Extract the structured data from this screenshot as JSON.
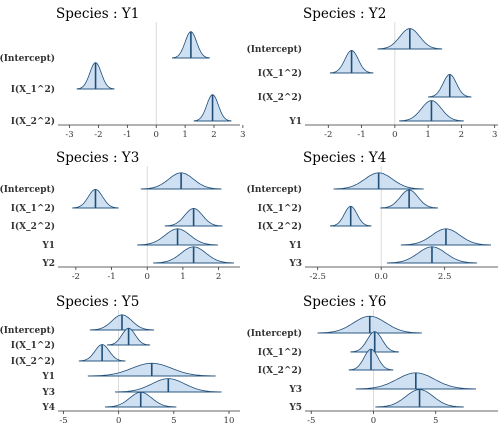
{
  "chart_data": [
    {
      "type": "ridgeline",
      "title": "Species : Y1",
      "xlim": [
        -3.4,
        2.9
      ],
      "xticks": [
        -3,
        -2,
        -1,
        0,
        1,
        2,
        3
      ],
      "categories": [
        "(Intercept)",
        "I(X_1^2)",
        "I(X_2^2)"
      ],
      "densities": [
        {
          "mean": 1.2,
          "sd": 0.2
        },
        {
          "mean": -2.1,
          "sd": 0.2
        },
        {
          "mean": 1.95,
          "sd": 0.2
        }
      ]
    },
    {
      "type": "ridgeline",
      "title": "Species : Y2",
      "xlim": [
        -2.7,
        3.1
      ],
      "xticks": [
        -2,
        -1,
        0,
        1,
        2,
        3
      ],
      "categories": [
        "(Intercept)",
        "I(X_1^2)",
        "I(X_2^2)",
        "Y1"
      ],
      "densities": [
        {
          "mean": 0.45,
          "sd": 0.3
        },
        {
          "mean": -1.3,
          "sd": 0.2
        },
        {
          "mean": 1.65,
          "sd": 0.2
        },
        {
          "mean": 1.1,
          "sd": 0.3
        }
      ]
    },
    {
      "type": "ridgeline",
      "title": "Species : Y3",
      "xlim": [
        -2.5,
        2.6
      ],
      "xticks": [
        -2,
        -1,
        0,
        1,
        2
      ],
      "categories": [
        "(Intercept)",
        "I(X_1^2)",
        "I(X_2^2)",
        "Y1",
        "Y2"
      ],
      "densities": [
        {
          "mean": 0.95,
          "sd": 0.35
        },
        {
          "mean": -1.45,
          "sd": 0.2
        },
        {
          "mean": 1.3,
          "sd": 0.25
        },
        {
          "mean": 0.85,
          "sd": 0.35
        },
        {
          "mean": 1.3,
          "sd": 0.35
        }
      ]
    },
    {
      "type": "ridgeline",
      "title": "Species : Y4",
      "xlim": [
        -3.0,
        4.6
      ],
      "xticks": [
        -2.5,
        0.0,
        2.5
      ],
      "ticklabels": [
        "-2.5",
        "0.0",
        "2.5"
      ],
      "categories": [
        "(Intercept)",
        "I(X_1^2)",
        "I(X_2^2)",
        "Y1",
        "Y3"
      ],
      "densities": [
        {
          "mean": -0.1,
          "sd": 0.55
        },
        {
          "mean": 1.1,
          "sd": 0.35
        },
        {
          "mean": -1.2,
          "sd": 0.25
        },
        {
          "mean": 2.55,
          "sd": 0.55
        },
        {
          "mean": 2.0,
          "sd": 0.55
        }
      ]
    },
    {
      "type": "ridgeline",
      "title": "Species : Y5",
      "xlim": [
        -5.5,
        11.0
      ],
      "xticks": [
        -5,
        0,
        5,
        10
      ],
      "categories": [
        "(Intercept)",
        "I(X_1^2)",
        "I(X_2^2)",
        "Y1",
        "Y3",
        "Y4"
      ],
      "densities": [
        {
          "mean": 0.3,
          "sd": 0.9
        },
        {
          "mean": 0.9,
          "sd": 0.6
        },
        {
          "mean": -1.5,
          "sd": 0.65
        },
        {
          "mean": 3.0,
          "sd": 1.8
        },
        {
          "mean": 4.5,
          "sd": 1.5
        },
        {
          "mean": 2.0,
          "sd": 1.0
        }
      ]
    },
    {
      "type": "ridgeline",
      "title": "Species : Y6",
      "xlim": [
        -5.5,
        10.0
      ],
      "xticks": [
        -5,
        0,
        5
      ],
      "categories": [
        "(Intercept)",
        "I(X_1^2)",
        "I(X_2^2)",
        "Y3",
        "Y5"
      ],
      "densities": [
        {
          "mean": -0.3,
          "sd": 1.3
        },
        {
          "mean": 0.1,
          "sd": 0.6
        },
        {
          "mean": -0.2,
          "sd": 0.55
        },
        {
          "mean": 3.4,
          "sd": 1.5
        },
        {
          "mean": 3.7,
          "sd": 1.1
        }
      ]
    }
  ],
  "colors": {
    "fill": "#c6dbef",
    "outline": "#1f4e79",
    "mean_line": "#1f4e79",
    "axis": "#333333",
    "zero_line": "#cccccc"
  }
}
